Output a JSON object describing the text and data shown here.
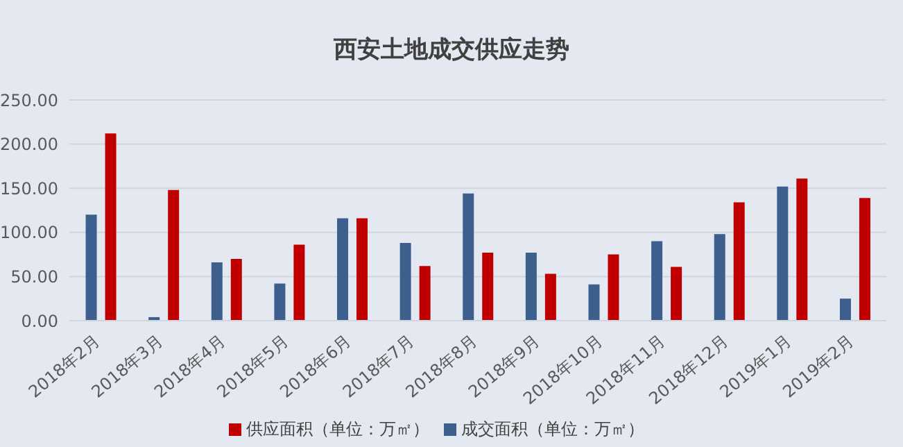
{
  "chart_data": {
    "type": "bar",
    "title": "西安土地成交供应走势",
    "categories": [
      "2018年2月",
      "2018年3月",
      "2018年4月",
      "2018年5月",
      "2018年6月",
      "2018年7月",
      "2018年8月",
      "2018年9月",
      "2018年10月",
      "2018年11月",
      "2018年12月",
      "2019年1月",
      "2019年2月"
    ],
    "series": [
      {
        "name": "成交面积（单位：万㎡）",
        "color": "#3c5f8e",
        "values": [
          120,
          4,
          66,
          42,
          116,
          88,
          144,
          77,
          41,
          90,
          98,
          152,
          25
        ]
      },
      {
        "name": "供应面积（单位：万㎡）",
        "color": "#c00000",
        "values": [
          212,
          148,
          70,
          86,
          116,
          62,
          77,
          53,
          75,
          61,
          134,
          161,
          139
        ]
      }
    ],
    "ylim": [
      0,
      250
    ],
    "yticks": [
      {
        "value": 0,
        "label": "0.00"
      },
      {
        "value": 50,
        "label": "50.00"
      },
      {
        "value": 100,
        "label": "100.00"
      },
      {
        "value": 150,
        "label": "150.00"
      },
      {
        "value": 200,
        "label": "200.00"
      },
      {
        "value": 250,
        "label": "250.00"
      }
    ],
    "grid": "y",
    "legend": "bottom"
  }
}
